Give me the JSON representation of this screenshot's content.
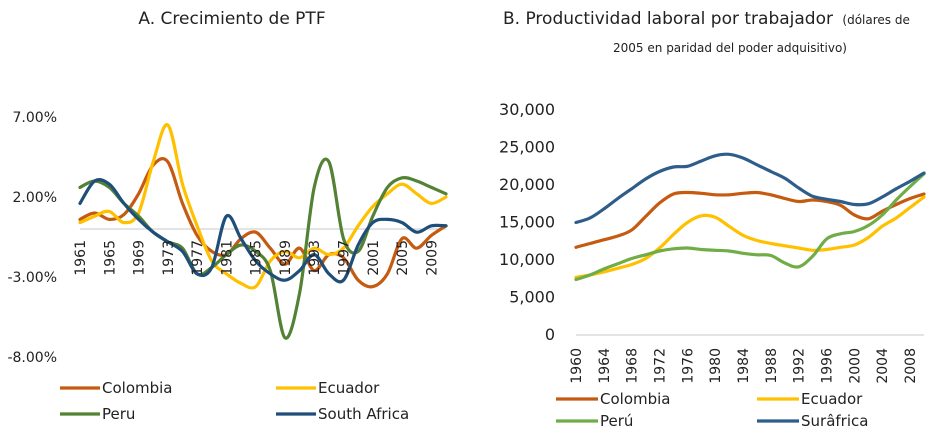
{
  "chart_data": [
    {
      "type": "line",
      "title": "A.  Crecimiento de PTF",
      "xlabel": "",
      "ylabel": "",
      "x": [
        1961,
        1963,
        1965,
        1967,
        1969,
        1971,
        1973,
        1975,
        1977,
        1979,
        1981,
        1983,
        1985,
        1987,
        1989,
        1991,
        1993,
        1995,
        1997,
        1999,
        2001,
        2003,
        2005,
        2007,
        2009,
        2011
      ],
      "ylim": [
        -8,
        7
      ],
      "y_ticks": [
        "7.00%",
        "2.00%",
        "-3.00%",
        "-8.00%"
      ],
      "y_tick_values": [
        7,
        2,
        -3,
        -8
      ],
      "x_tick_labels": [
        "1961",
        "1965",
        "1969",
        "1973",
        "1977",
        "1981",
        "1985",
        "1989",
        "1993",
        "1997",
        "2001",
        "2005",
        "2009"
      ],
      "legend": "bottom",
      "series": [
        {
          "name": "Colombia",
          "color": "#C55A11",
          "values": [
            0.6,
            1.0,
            0.6,
            0.9,
            2.2,
            4.0,
            4.2,
            1.6,
            -0.4,
            -1.4,
            -1.6,
            -0.6,
            -0.2,
            -1.2,
            -2.2,
            -1.2,
            -2.6,
            -1.6,
            -1.8,
            -3.2,
            -3.6,
            -2.8,
            -0.6,
            -1.2,
            -0.4,
            0.2
          ]
        },
        {
          "name": "Ecuador",
          "color": "#FFC000",
          "values": [
            0.4,
            0.8,
            1.1,
            0.4,
            1.0,
            4.2,
            6.5,
            2.8,
            0.2,
            -2.0,
            -2.8,
            -3.4,
            -3.6,
            -2.0,
            -1.4,
            -1.8,
            -1.2,
            -1.6,
            -1.2,
            0.2,
            1.4,
            2.2,
            2.8,
            2.2,
            1.6,
            2.0
          ]
        },
        {
          "name": "Peru",
          "color": "#548235",
          "values": [
            2.6,
            3.0,
            2.6,
            1.6,
            0.8,
            -0.2,
            -0.8,
            -1.2,
            -2.8,
            -2.4,
            -1.6,
            -1.0,
            -1.4,
            -2.6,
            -6.8,
            -4.0,
            2.6,
            4.2,
            -0.6,
            -1.4,
            0.8,
            2.6,
            3.2,
            3.0,
            2.6,
            2.2
          ]
        },
        {
          "name": "South Africa",
          "color": "#1F4E79",
          "values": [
            1.6,
            3.0,
            2.8,
            1.6,
            0.6,
            -0.2,
            -0.8,
            -1.4,
            -2.8,
            -2.4,
            0.8,
            -0.6,
            -2.0,
            -2.8,
            -3.2,
            -2.6,
            -1.6,
            -2.8,
            -3.2,
            -1.0,
            0.4,
            0.6,
            0.4,
            -0.2,
            0.2,
            0.2
          ]
        }
      ]
    },
    {
      "type": "line",
      "title": "B.  Productividad laboral por trabajador",
      "subtitle_inline": "(dólares de",
      "subtitle_line2": "2005 en paridad del poder adquisitivo)",
      "xlabel": "",
      "ylabel": "",
      "x": [
        1960,
        1962,
        1964,
        1966,
        1968,
        1970,
        1972,
        1974,
        1976,
        1978,
        1980,
        1982,
        1984,
        1986,
        1988,
        1990,
        1992,
        1994,
        1996,
        1998,
        2000,
        2002,
        2004,
        2006,
        2008,
        2010
      ],
      "ylim": [
        0,
        30000
      ],
      "y_ticks": [
        "30,000",
        "25,000",
        "20,000",
        "15,000",
        "10,000",
        "5,000",
        "0"
      ],
      "y_tick_values": [
        30000,
        25000,
        20000,
        15000,
        10000,
        5000,
        0
      ],
      "x_tick_labels": [
        "1960",
        "1964",
        "1968",
        "1972",
        "1976",
        "1980",
        "1984",
        "1988",
        "1992",
        "1996",
        "2000",
        "2004",
        "2008"
      ],
      "legend": "bottom",
      "series": [
        {
          "name": "Colombia",
          "color": "#C55A11",
          "values": [
            11700,
            12200,
            12700,
            13200,
            14000,
            15800,
            17600,
            18800,
            19000,
            18900,
            18700,
            18700,
            18900,
            19000,
            18700,
            18200,
            17800,
            18000,
            17800,
            17300,
            16000,
            15500,
            16500,
            17400,
            18200,
            18800
          ]
        },
        {
          "name": "Ecuador",
          "color": "#FFC000",
          "values": [
            7700,
            8000,
            8400,
            8900,
            9400,
            10200,
            11600,
            13400,
            15000,
            15900,
            15700,
            14500,
            13300,
            12600,
            12200,
            11900,
            11600,
            11300,
            11400,
            11700,
            12000,
            13000,
            14500,
            15600,
            17000,
            18400
          ]
        },
        {
          "name": "Perú",
          "color": "#70AD47",
          "values": [
            7400,
            8000,
            8800,
            9500,
            10200,
            10700,
            11200,
            11500,
            11600,
            11400,
            11300,
            11200,
            10900,
            10700,
            10600,
            9600,
            9100,
            10500,
            12800,
            13500,
            13800,
            14600,
            16000,
            18000,
            19800,
            21500
          ]
        },
        {
          "name": "Surâfrica",
          "color": "#2E5D8A",
          "values": [
            15000,
            15600,
            16800,
            18200,
            19500,
            20800,
            21800,
            22400,
            22500,
            23200,
            23900,
            24100,
            23600,
            22700,
            21800,
            20900,
            19600,
            18500,
            18100,
            17800,
            17400,
            17500,
            18400,
            19500,
            20500,
            21600
          ]
        }
      ]
    }
  ]
}
